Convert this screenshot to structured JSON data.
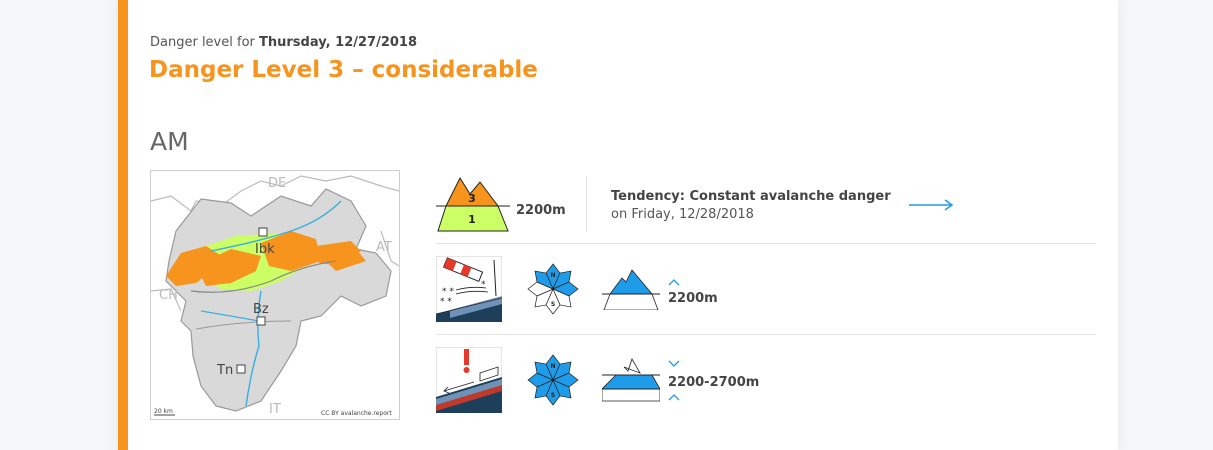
{
  "header": {
    "prefix": "Danger level for",
    "date": "Thursday, 12/27/2018",
    "title": "Danger Level 3 – considerable",
    "period": "AM"
  },
  "map": {
    "labels": {
      "de": "DE",
      "at": "AT",
      "ch": "CH",
      "it": "IT",
      "ibk": "Ibk",
      "bz": "Bz",
      "tn": "Tn"
    },
    "scale": "20 km",
    "credit": "CC BY avalanche.report"
  },
  "danger": {
    "upper_level": "3",
    "lower_level": "1",
    "elevation": "2200m"
  },
  "tendency": {
    "title": "Tendency: Constant avalanche danger",
    "date": "on Friday, 12/28/2018"
  },
  "problems": [
    {
      "icon": "wind-slab-icon",
      "elevation": "2200m"
    },
    {
      "icon": "persistent-weak-layers-icon",
      "elevation": "2200-2700m"
    }
  ],
  "colors": {
    "accent": "#f7941d",
    "level3": "#f7941d",
    "level1": "#ccff66",
    "aspect_blue": "#1e9be9",
    "link_blue": "#1e9be9"
  }
}
